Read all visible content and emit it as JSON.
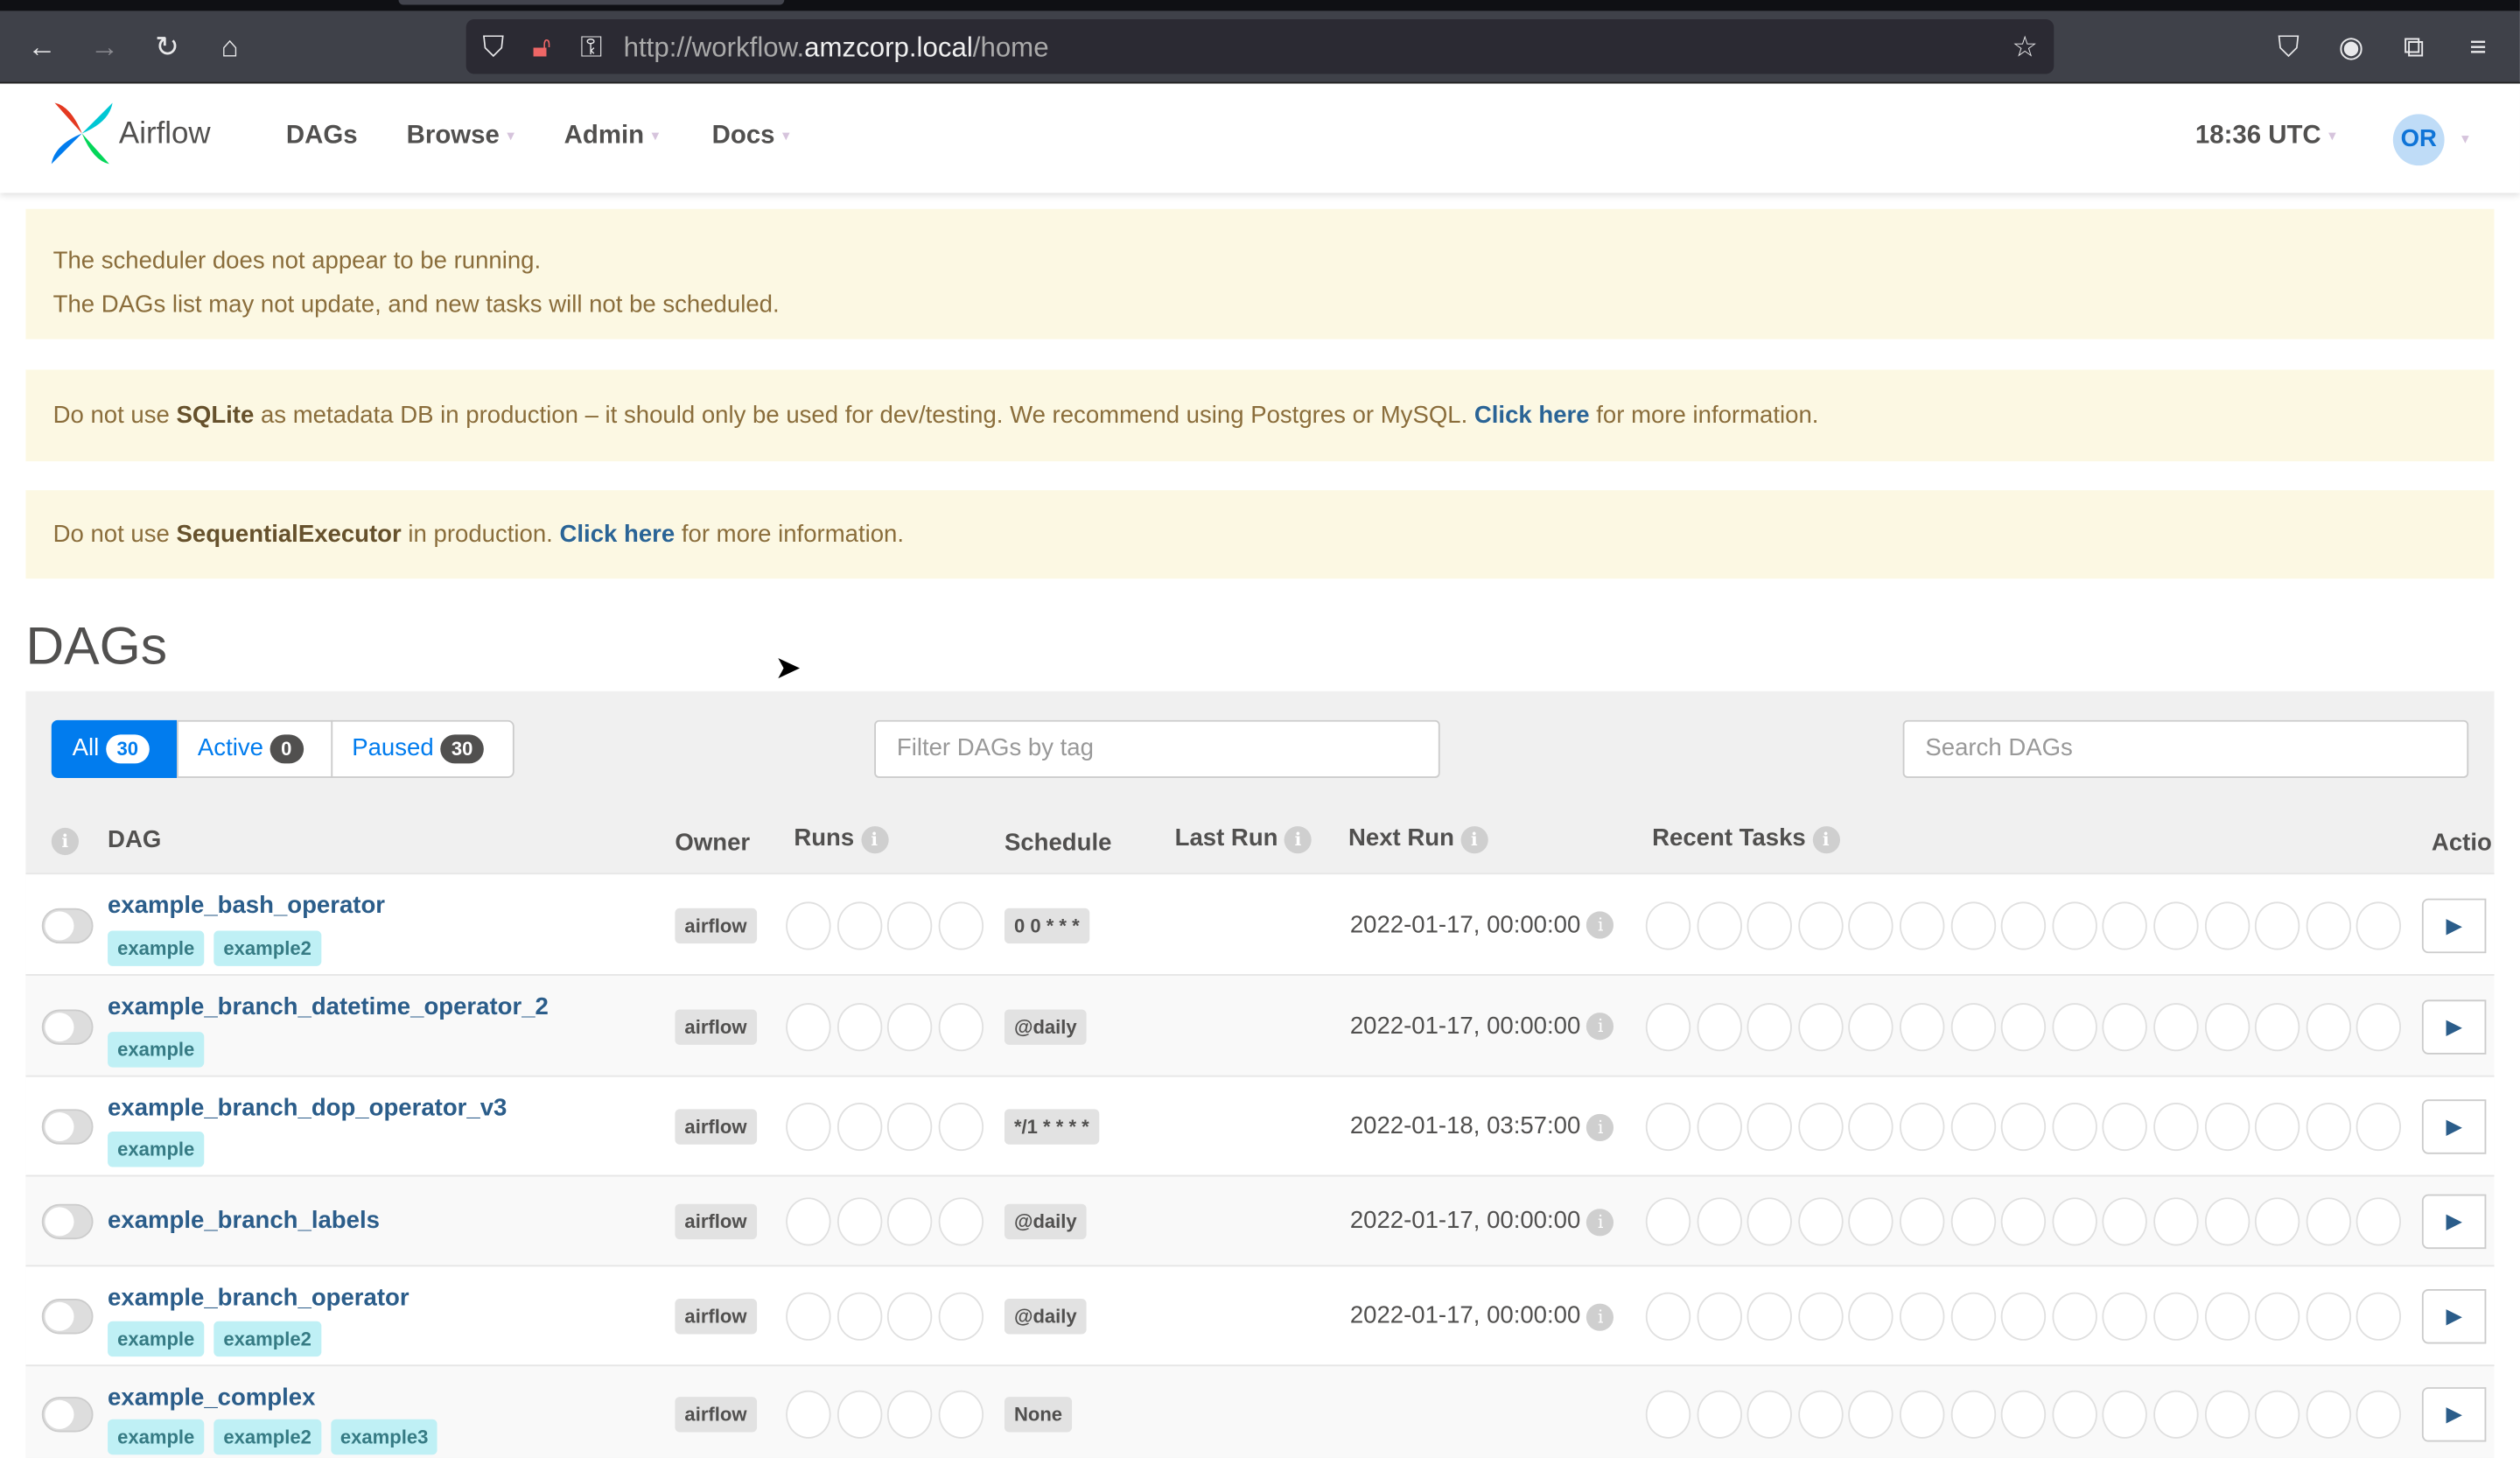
{
  "browser": {
    "url_prefix": "http://workflow.",
    "url_domain": "amzcorp.local",
    "url_path": "/home"
  },
  "navbar": {
    "brand": "Airflow",
    "menu": [
      "DAGs",
      "Browse",
      "Admin",
      "Docs"
    ],
    "time": "18:36 UTC",
    "user_initials": "OR"
  },
  "alerts": {
    "scheduler_line1": "The scheduler does not appear to be running.",
    "scheduler_line2": "The DAGs list may not update, and new tasks will not be scheduled.",
    "sqlite_pre": "Do not use ",
    "sqlite_bold": "SQLite",
    "sqlite_mid": " as metadata DB in production – it should only be used for dev/testing. We recommend using Postgres or MySQL. ",
    "sqlite_link": "Click here",
    "sqlite_post": " for more information.",
    "seq_pre": "Do not use ",
    "seq_bold": "SequentialExecutor",
    "seq_mid": " in production. ",
    "seq_link": "Click here",
    "seq_post": " for more information."
  },
  "page_title": "DAGs",
  "filters": {
    "all_label": "All",
    "all_count": "30",
    "active_label": "Active",
    "active_count": "0",
    "paused_label": "Paused",
    "paused_count": "30",
    "tag_placeholder": "Filter DAGs by tag",
    "search_placeholder": "Search DAGs"
  },
  "columns": {
    "dag": "DAG",
    "owner": "Owner",
    "runs": "Runs",
    "schedule": "Schedule",
    "last_run": "Last Run",
    "next_run": "Next Run",
    "recent_tasks": "Recent Tasks",
    "actions": "Actio"
  },
  "rows": [
    {
      "name": "example_bash_operator",
      "tags": [
        "example",
        "example2"
      ],
      "owner": "airflow",
      "schedule": "0 0 * * *",
      "next_run": "2022-01-17, 00:00:00",
      "paused": true
    },
    {
      "name": "example_branch_datetime_operator_2",
      "tags": [
        "example"
      ],
      "owner": "airflow",
      "schedule": "@daily",
      "next_run": "2022-01-17, 00:00:00",
      "paused": true
    },
    {
      "name": "example_branch_dop_operator_v3",
      "tags": [
        "example"
      ],
      "owner": "airflow",
      "schedule": "*/1 * * * *",
      "next_run": "2022-01-18, 03:57:00",
      "paused": true
    },
    {
      "name": "example_branch_labels",
      "tags": [],
      "owner": "airflow",
      "schedule": "@daily",
      "next_run": "2022-01-17, 00:00:00",
      "paused": true
    },
    {
      "name": "example_branch_operator",
      "tags": [
        "example",
        "example2"
      ],
      "owner": "airflow",
      "schedule": "@daily",
      "next_run": "2022-01-17, 00:00:00",
      "paused": true
    },
    {
      "name": "example_complex",
      "tags": [
        "example",
        "example2",
        "example3"
      ],
      "owner": "airflow",
      "schedule": "None",
      "next_run": "",
      "paused": true
    }
  ],
  "colors": {
    "link": "#2b5d8a",
    "accent": "#017cee",
    "alert_bg": "#fcf8e3",
    "tag_bg": "#bff0f5"
  }
}
